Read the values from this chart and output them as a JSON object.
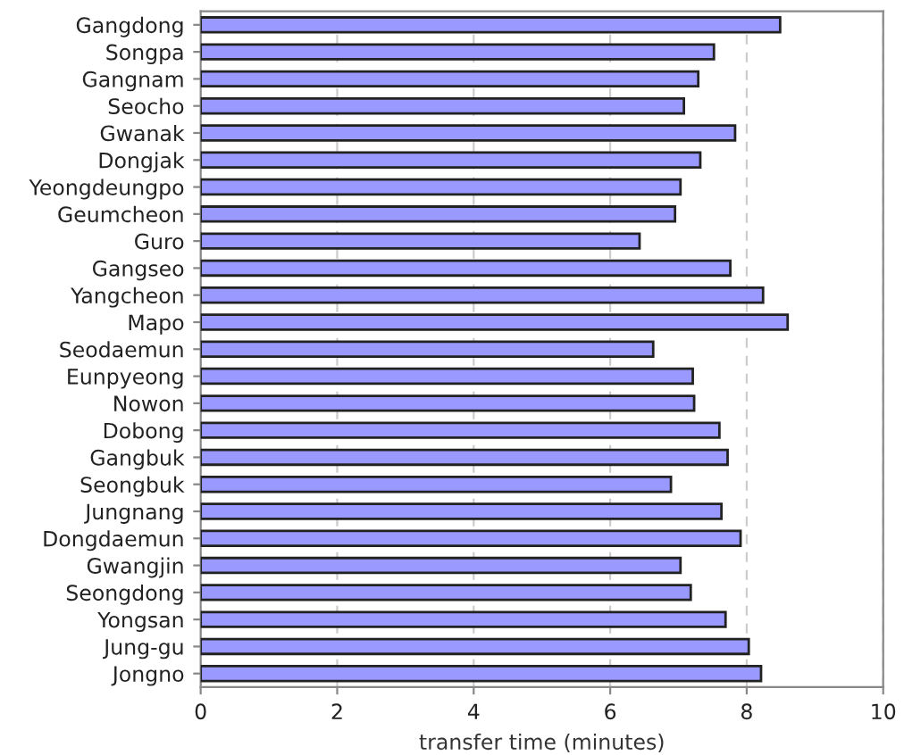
{
  "chart_data": {
    "type": "bar",
    "orientation": "horizontal",
    "xlabel": "transfer time (minutes)",
    "categories": [
      "Gangdong",
      "Songpa",
      "Gangnam",
      "Seocho",
      "Gwanak",
      "Dongjak",
      "Yeongdeungpo",
      "Geumcheon",
      "Guro",
      "Gangseo",
      "Yangcheon",
      "Mapo",
      "Seodaemun",
      "Eunpyeong",
      "Nowon",
      "Dobong",
      "Gangbuk",
      "Seongbuk",
      "Jungnang",
      "Dongdaemun",
      "Gwangjin",
      "Seongdong",
      "Yongsan",
      "Jung-gu",
      "Jongno"
    ],
    "values": [
      8.49,
      7.52,
      7.29,
      7.08,
      7.83,
      7.32,
      7.03,
      6.95,
      6.43,
      7.76,
      8.24,
      8.6,
      6.63,
      7.21,
      7.23,
      7.6,
      7.72,
      6.89,
      7.63,
      7.91,
      7.03,
      7.18,
      7.69,
      8.03,
      8.21
    ],
    "color": "#9999ff",
    "xlim": [
      0,
      10
    ],
    "xticks": [
      0,
      2,
      4,
      6,
      8,
      10
    ],
    "grid": "x"
  }
}
